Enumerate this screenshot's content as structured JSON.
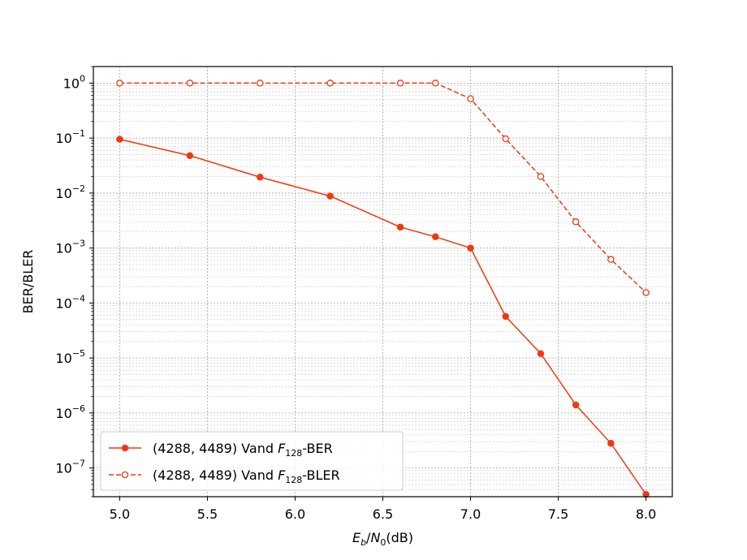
{
  "chart_data": {
    "type": "line",
    "xlabel": "E_b/N_0(dB)",
    "ylabel": "BER/BLER",
    "xlim": [
      4.85,
      8.15
    ],
    "ylim": [
      3e-08,
      2.0
    ],
    "yscale": "log",
    "grid": true,
    "legend_position": "bottom-left",
    "x_ticks": [
      5.0,
      5.5,
      6.0,
      6.5,
      7.0,
      7.5,
      8.0
    ],
    "x_tick_labels": [
      "5.0",
      "5.5",
      "6.0",
      "6.5",
      "7.0",
      "7.5",
      "8.0"
    ],
    "y_tick_exponents": [
      0,
      -1,
      -2,
      -3,
      -4,
      -5,
      -6,
      -7
    ],
    "series": [
      {
        "name": "(4288, 4489) Vand F128-BER",
        "legend_prefix": "(4288, 4489) Vand ",
        "legend_field": "F",
        "legend_subscript": "128",
        "legend_suffix": "-BER",
        "color": "#ee3a10",
        "line_style": "solid",
        "marker": "filled-circle",
        "x": [
          5.0,
          5.4,
          5.8,
          6.2,
          6.6,
          6.8,
          7.0,
          7.2,
          7.4,
          7.6,
          7.8,
          8.0
        ],
        "y": [
          0.095,
          0.048,
          0.0195,
          0.0088,
          0.0024,
          0.0016,
          0.001,
          5.7e-05,
          1.2e-05,
          1.4e-06,
          2.8e-07,
          3.3e-08
        ]
      },
      {
        "name": "(4288, 4489) Vand F128-BLER",
        "legend_prefix": "(4288, 4489) Vand ",
        "legend_field": "F",
        "legend_subscript": "128",
        "legend_suffix": "-BLER",
        "color": "#ee3a10",
        "line_style": "dashed",
        "marker": "hollow-circle",
        "x": [
          5.0,
          5.4,
          5.8,
          6.2,
          6.6,
          6.8,
          7.0,
          7.2,
          7.4,
          7.6,
          7.8,
          8.0
        ],
        "y": [
          1.0,
          1.0,
          1.0,
          1.0,
          1.0,
          1.0,
          0.52,
          0.097,
          0.02,
          0.003,
          0.00062,
          0.000155
        ]
      }
    ]
  }
}
